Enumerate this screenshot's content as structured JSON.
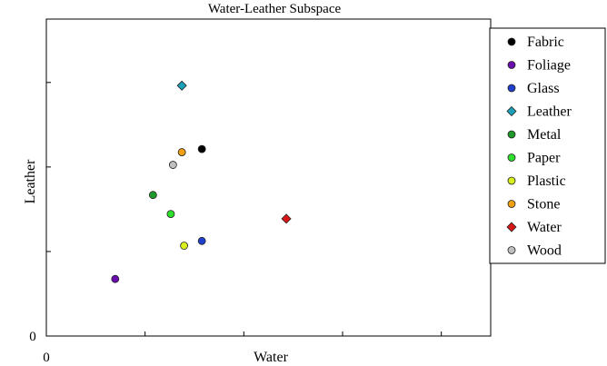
{
  "chart_data": {
    "type": "scatter",
    "title": "Water-Leather Subspace",
    "xlabel": "Water",
    "ylabel": "Leather",
    "x_tick_labels": [
      "0"
    ],
    "y_tick_labels": [
      "0"
    ],
    "xlim": [
      0,
      1
    ],
    "ylim": [
      0,
      1
    ],
    "grid": false,
    "legend_position": "right",
    "series": [
      {
        "name": "Fabric",
        "color": "#000000",
        "marker": "circle",
        "x": [
          0.35
        ],
        "y": [
          0.59
        ]
      },
      {
        "name": "Foliage",
        "color": "#6a0dad",
        "marker": "circle",
        "x": [
          0.155
        ],
        "y": [
          0.18
        ]
      },
      {
        "name": "Glass",
        "color": "#1f3fcc",
        "marker": "circle",
        "x": [
          0.35
        ],
        "y": [
          0.3
        ]
      },
      {
        "name": "Leather",
        "color": "#1aa0b8",
        "marker": "diamond",
        "x": [
          0.305
        ],
        "y": [
          0.79
        ]
      },
      {
        "name": "Metal",
        "color": "#1f9a2a",
        "marker": "circle",
        "x": [
          0.24
        ],
        "y": [
          0.445
        ]
      },
      {
        "name": "Paper",
        "color": "#2ee02e",
        "marker": "circle",
        "x": [
          0.28
        ],
        "y": [
          0.385
        ]
      },
      {
        "name": "Plastic",
        "color": "#d9ef1a",
        "marker": "circle",
        "x": [
          0.31
        ],
        "y": [
          0.285
        ]
      },
      {
        "name": "Stone",
        "color": "#f0a010",
        "marker": "circle",
        "x": [
          0.305
        ],
        "y": [
          0.58
        ]
      },
      {
        "name": "Water",
        "color": "#d81818",
        "marker": "diamond",
        "x": [
          0.54
        ],
        "y": [
          0.37
        ]
      },
      {
        "name": "Wood",
        "color": "#c0c0c0",
        "marker": "circle",
        "x": [
          0.285
        ],
        "y": [
          0.54
        ]
      }
    ]
  }
}
